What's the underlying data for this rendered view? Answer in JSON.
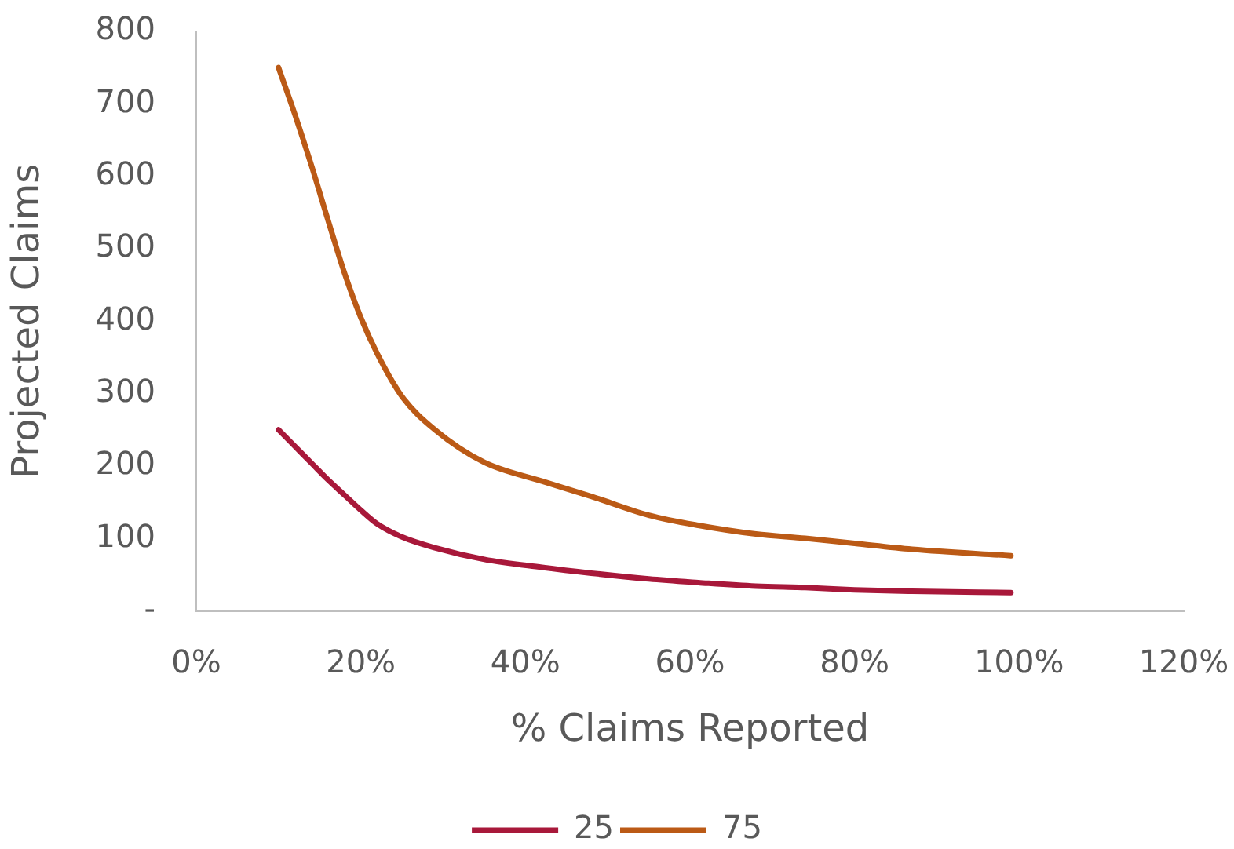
{
  "chart_data": {
    "type": "line",
    "xlabel": "% Claims Reported",
    "ylabel": "Projected Claims",
    "x": [
      10,
      12,
      14,
      16,
      18,
      20,
      22,
      25,
      29,
      35,
      42,
      48,
      55,
      61,
      68,
      74,
      80,
      87,
      99
    ],
    "series": [
      {
        "name": "25",
        "color": "#a8183a",
        "values": [
          250,
          227,
          204,
          181,
          160,
          139,
          120,
          102,
          87,
          71,
          60,
          52,
          44,
          39,
          34,
          32,
          29,
          27,
          25
        ]
      },
      {
        "name": "75",
        "color": "#bb5a16",
        "values": [
          750,
          685,
          615,
          540,
          467,
          405,
          355,
          296,
          250,
          205,
          179,
          158,
          132,
          118,
          106,
          100,
          93,
          85,
          76
        ]
      }
    ],
    "xlim": [
      0,
      120
    ],
    "xticks": [
      {
        "value": 0,
        "label": "0%"
      },
      {
        "value": 20,
        "label": "20%"
      },
      {
        "value": 40,
        "label": "40%"
      },
      {
        "value": 60,
        "label": "60%"
      },
      {
        "value": 80,
        "label": "80%"
      },
      {
        "value": 100,
        "label": "100%"
      },
      {
        "value": 120,
        "label": "120%"
      }
    ],
    "ylim": [
      0,
      800
    ],
    "yticks": [
      {
        "value": 0,
        "label": "-"
      },
      100,
      200,
      300,
      400,
      500,
      600,
      700,
      800
    ],
    "legend": "bottom",
    "marker": "none",
    "line_style": "solid"
  }
}
